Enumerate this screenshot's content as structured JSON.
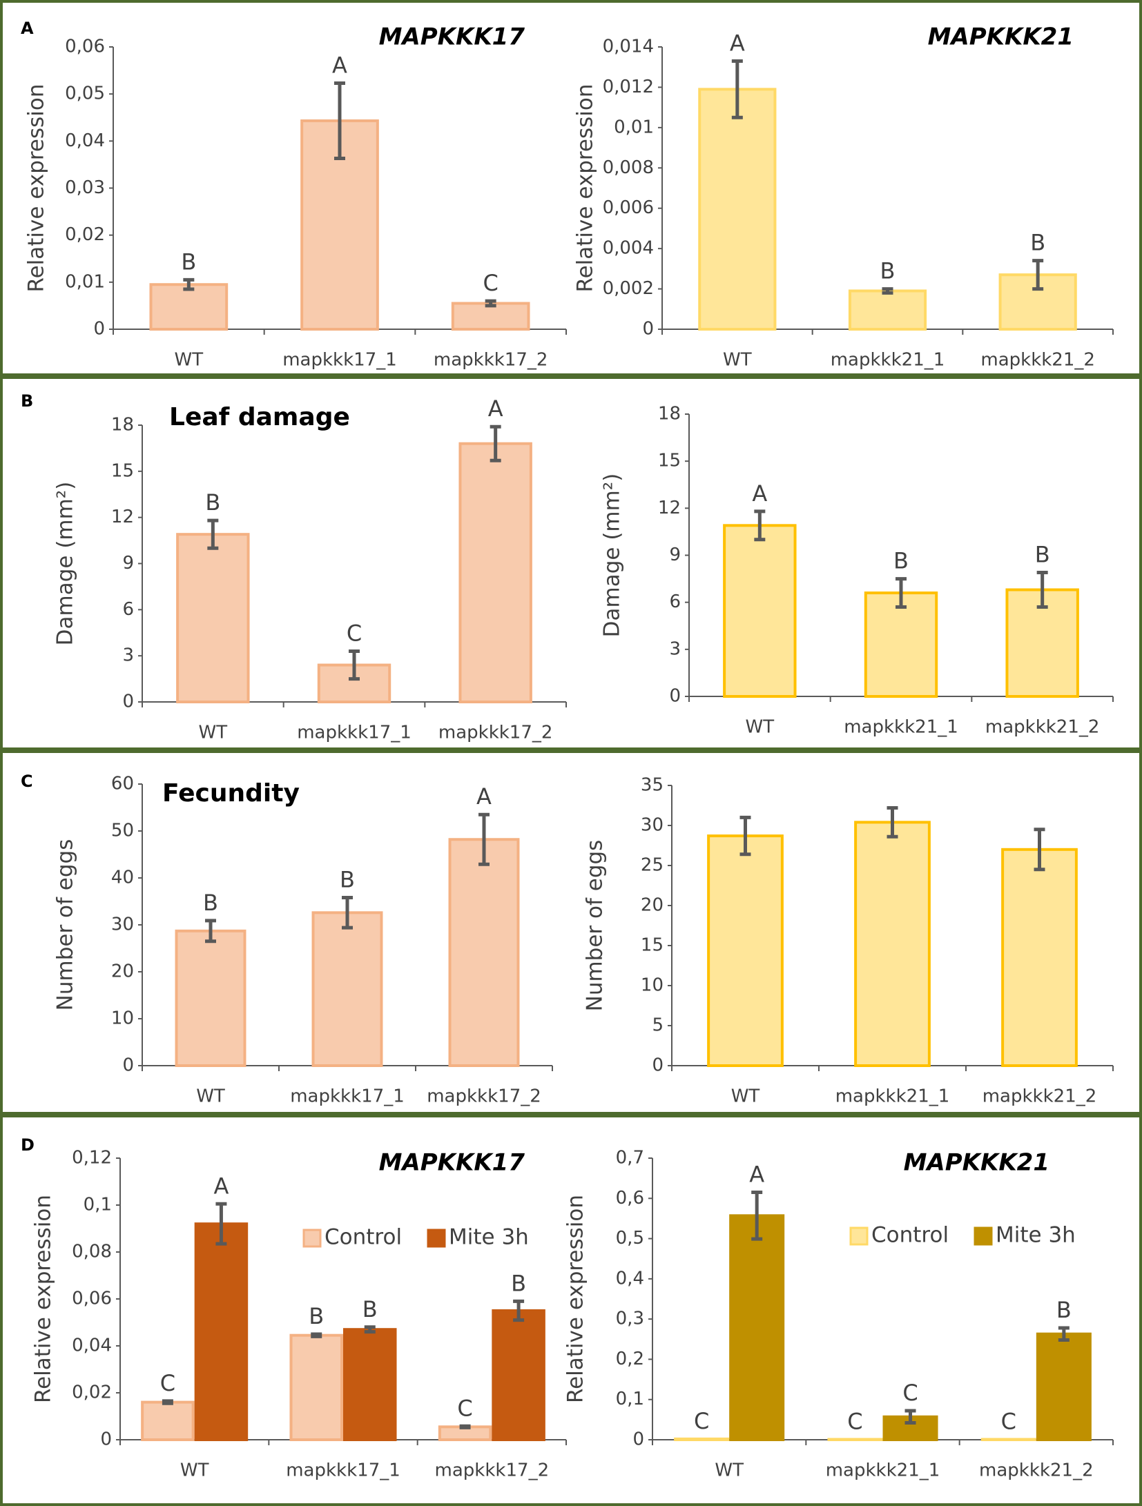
{
  "panels": [
    "A",
    "B",
    "C",
    "D"
  ],
  "chart_data": [
    {
      "type": "bar",
      "title": "MAPKKK17",
      "ylabel": "Relative expression",
      "categories": [
        "WT",
        "mapkkk17_1",
        "mapkkk17_2"
      ],
      "series": [
        {
          "color": "#f8cbad",
          "edge": "#f4b183",
          "values": [
            0.0095,
            0.0443,
            0.0055
          ],
          "errors": [
            0.001,
            0.008,
            0.0005
          ],
          "letters": [
            "B",
            "A",
            "C"
          ]
        }
      ],
      "ylim": [
        0,
        0.06
      ],
      "yticks": [
        0,
        {
          "value": 0.01,
          "label": "0,01"
        },
        {
          "value": 0.02,
          "label": "0,02"
        },
        {
          "value": 0.03,
          "label": "0,03"
        },
        {
          "value": 0.04,
          "label": "0,04"
        },
        {
          "value": 0.05,
          "label": "0,05"
        },
        {
          "value": 0.06,
          "label": "0,06"
        }
      ]
    },
    {
      "type": "bar",
      "title": "MAPKKK21",
      "ylabel": "Relative expression",
      "categories": [
        "WT",
        "mapkkk21_1",
        "mapkkk21_2"
      ],
      "series": [
        {
          "color": "#ffe699",
          "edge": "#ffd966",
          "values": [
            0.0119,
            0.0019,
            0.0027
          ],
          "errors": [
            0.0014,
            0.0001,
            0.0007
          ],
          "letters": [
            "A",
            "B",
            "B"
          ]
        }
      ],
      "ylim": [
        0,
        0.014
      ],
      "yticks": [
        0,
        {
          "value": 0.002,
          "label": "0,002"
        },
        {
          "value": 0.004,
          "label": "0,004"
        },
        {
          "value": 0.006,
          "label": "0,006"
        },
        {
          "value": 0.008,
          "label": "0,008"
        },
        {
          "value": 0.01,
          "label": "0,01"
        },
        {
          "value": 0.012,
          "label": "0,012"
        },
        {
          "value": 0.014,
          "label": "0,014"
        }
      ]
    },
    {
      "type": "bar",
      "title": "Leaf damage",
      "ylabel": "Damage (mm²)",
      "categories": [
        "WT",
        "mapkkk17_1",
        "mapkkk17_2"
      ],
      "series": [
        {
          "color": "#f8cbad",
          "edge": "#f4b183",
          "values": [
            10.9,
            2.4,
            16.8
          ],
          "errors": [
            0.9,
            0.9,
            1.1
          ],
          "letters": [
            "B",
            "C",
            "A"
          ]
        }
      ],
      "ylim": [
        0,
        18
      ],
      "yticks": [
        0,
        3,
        6,
        9,
        12,
        15,
        18
      ]
    },
    {
      "type": "bar",
      "ylabel": "Damage (mm²)",
      "categories": [
        "WT",
        "mapkkk21_1",
        "mapkkk21_2"
      ],
      "series": [
        {
          "color": "#ffe699",
          "edge": "#ffc000",
          "values": [
            10.9,
            6.6,
            6.8
          ],
          "errors": [
            0.9,
            0.9,
            1.1
          ],
          "letters": [
            "A",
            "B",
            "B"
          ]
        }
      ],
      "ylim": [
        0,
        18
      ],
      "yticks": [
        0,
        3,
        6,
        9,
        12,
        15,
        18
      ]
    },
    {
      "type": "bar",
      "title": "Fecundity",
      "ylabel": "Number of eggs",
      "categories": [
        "WT",
        "mapkkk17_1",
        "mapkkk17_2"
      ],
      "series": [
        {
          "color": "#f8cbad",
          "edge": "#f4b183",
          "values": [
            28.7,
            32.6,
            48.2
          ],
          "errors": [
            2.2,
            3.2,
            5.3
          ],
          "letters": [
            "B",
            "B",
            "A"
          ]
        }
      ],
      "ylim": [
        0,
        60
      ],
      "yticks": [
        0,
        10,
        20,
        30,
        40,
        50,
        60
      ]
    },
    {
      "type": "bar",
      "ylabel": "Number of eggs",
      "categories": [
        "WT",
        "mapkkk21_1",
        "mapkkk21_2"
      ],
      "series": [
        {
          "color": "#ffe699",
          "edge": "#ffc000",
          "values": [
            28.7,
            30.4,
            27
          ],
          "errors": [
            2.3,
            1.8,
            2.5
          ]
        }
      ],
      "ylim": [
        0,
        35
      ],
      "yticks": [
        0,
        5,
        10,
        15,
        20,
        25,
        30,
        35
      ]
    },
    {
      "type": "bar",
      "title": "MAPKKK17",
      "ylabel": "Relative expression",
      "categories": [
        "WT",
        "mapkkk17_1",
        "mapkkk17_2"
      ],
      "series": [
        {
          "name": "Control",
          "color": "#f8cbad",
          "edge": "#f4b183",
          "values": [
            0.016,
            0.0445,
            0.0055
          ],
          "errors": [
            0.0005,
            0.0005,
            0.0003
          ],
          "letters": [
            "C",
            "B",
            "C"
          ]
        },
        {
          "name": "Mite 3h",
          "color": "#c55a11",
          "edge": "#c55a11",
          "values": [
            0.092,
            0.047,
            0.055
          ],
          "errors": [
            0.0085,
            0.001,
            0.004
          ],
          "letters": [
            "A",
            "B",
            "B"
          ]
        }
      ],
      "ylim": [
        0,
        0.12
      ],
      "yticks": [
        0,
        {
          "value": 0.02,
          "label": "0,02"
        },
        {
          "value": 0.04,
          "label": "0,04"
        },
        {
          "value": 0.06,
          "label": "0,06"
        },
        {
          "value": 0.08,
          "label": "0,08"
        },
        {
          "value": 0.1,
          "label": "0,1"
        },
        {
          "value": 0.12,
          "label": "0,12"
        }
      ]
    },
    {
      "type": "bar",
      "title": "MAPKKK21",
      "ylabel": "Relative expression",
      "categories": [
        "WT",
        "mapkkk21_1",
        "mapkkk21_2"
      ],
      "series": [
        {
          "name": "Control",
          "color": "#ffe699",
          "edge": "#ffd966",
          "values": [
            0.002,
            0.001,
            0.001
          ],
          "errors": [
            0,
            0,
            0
          ],
          "letters": [
            "C",
            "C",
            "C"
          ]
        },
        {
          "name": "Mite 3h",
          "color": "#bf9000",
          "edge": "#bf9000",
          "values": [
            0.557,
            0.057,
            0.263
          ],
          "errors": [
            0.058,
            0.015,
            0.015
          ],
          "letters": [
            "A",
            "C",
            "B"
          ]
        }
      ],
      "ylim": [
        0,
        0.7
      ],
      "yticks": [
        0,
        {
          "value": 0.1,
          "label": "0,1"
        },
        {
          "value": 0.2,
          "label": "0,2"
        },
        {
          "value": 0.3,
          "label": "0,3"
        },
        {
          "value": 0.4,
          "label": "0,4"
        },
        {
          "value": 0.5,
          "label": "0,5"
        },
        {
          "value": 0.6,
          "label": "0,6"
        },
        {
          "value": 0.7,
          "label": "0,7"
        }
      ]
    }
  ]
}
